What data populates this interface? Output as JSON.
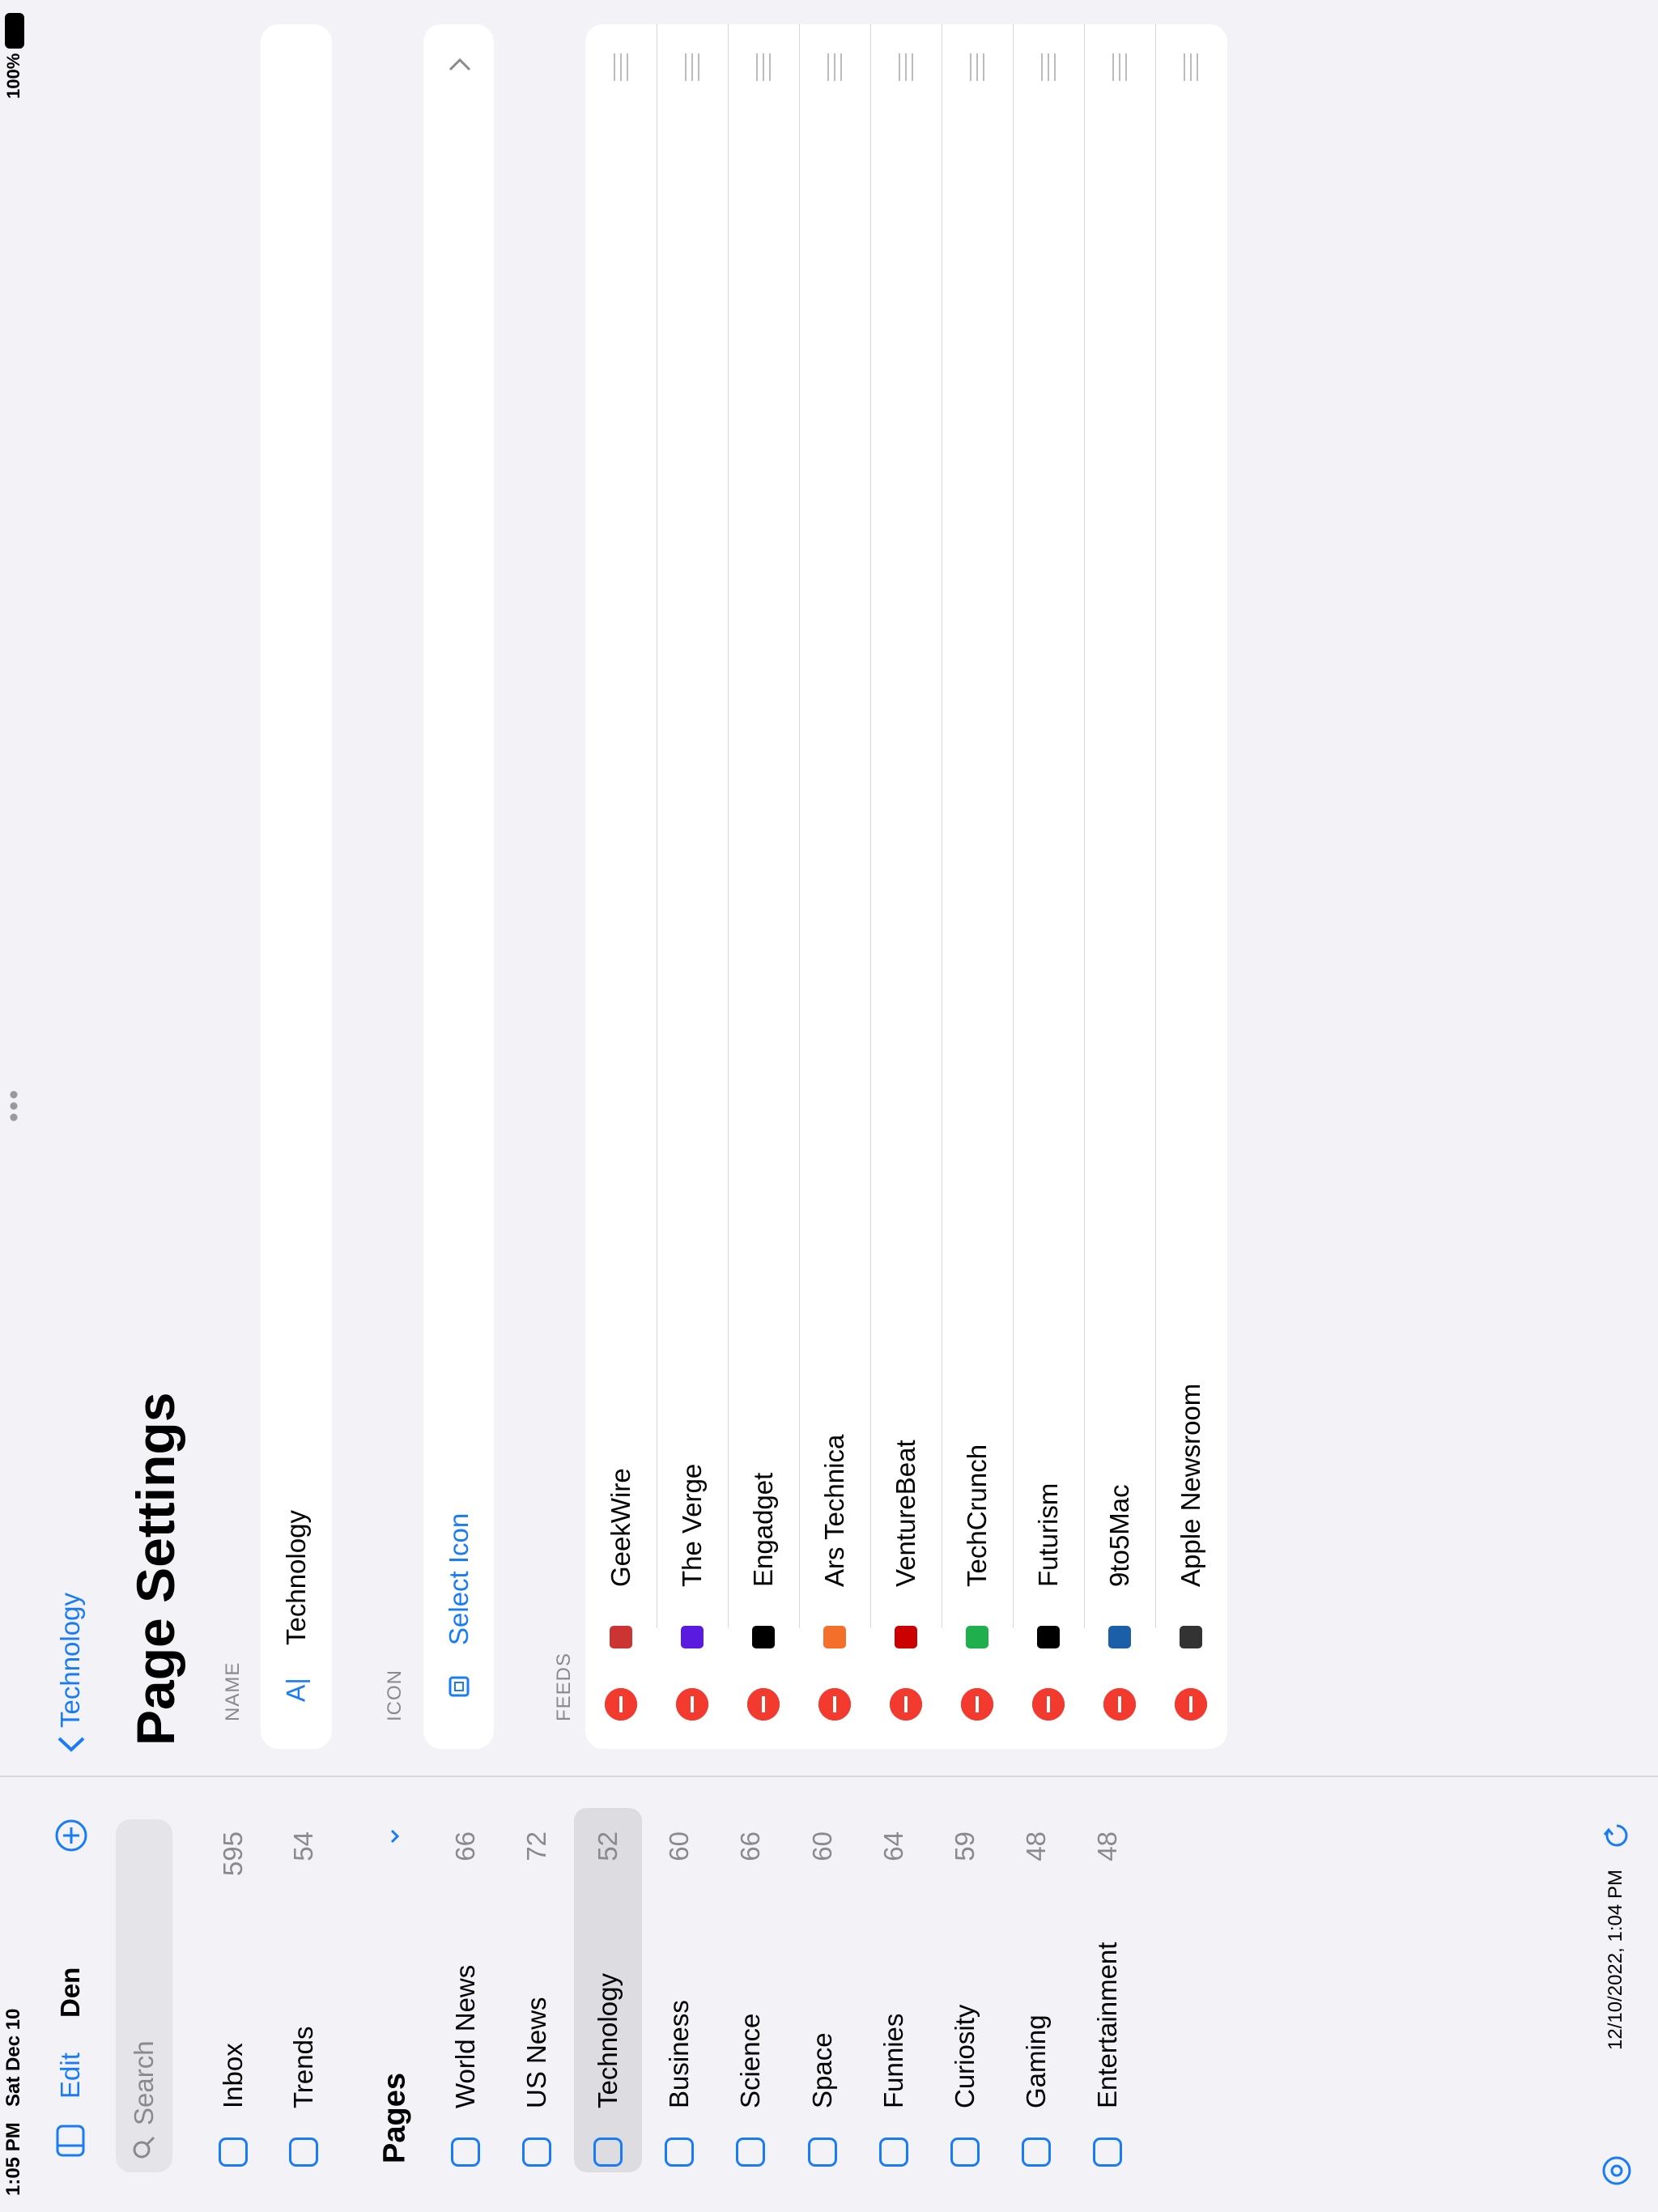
{
  "status_bar": {
    "time": "1:05 PM",
    "date": "Sat Dec 10",
    "battery": "100%"
  },
  "sidebar": {
    "edit": "Edit",
    "title": "Den",
    "search_placeholder": "Search",
    "top_items": [
      {
        "label": "Inbox",
        "count": "595"
      },
      {
        "label": "Trends",
        "count": "54"
      }
    ],
    "pages_heading": "Pages",
    "pages": [
      {
        "label": "World News",
        "count": "66"
      },
      {
        "label": "US News",
        "count": "72"
      },
      {
        "label": "Technology",
        "count": "52"
      },
      {
        "label": "Business",
        "count": "60"
      },
      {
        "label": "Science",
        "count": "66"
      },
      {
        "label": "Space",
        "count": "60"
      },
      {
        "label": "Funnies",
        "count": "64"
      },
      {
        "label": "Curiosity",
        "count": "59"
      },
      {
        "label": "Gaming",
        "count": "48"
      },
      {
        "label": "Entertainment",
        "count": "48"
      }
    ],
    "selected_page": 2,
    "footer": "12/10/2022, 1:04 PM"
  },
  "detail": {
    "back": "Technology",
    "title": "Page Settings",
    "name_label": "NAME",
    "name_value": "Technology",
    "icon_label": "ICON",
    "icon_action": "Select Icon",
    "feeds_label": "FEEDS",
    "feeds": [
      "GeekWire",
      "The Verge",
      "Engadget",
      "Ars Technica",
      "VentureBeat",
      "TechCrunch",
      "Futurism",
      "9to5Mac",
      "Apple Newsroom"
    ]
  }
}
